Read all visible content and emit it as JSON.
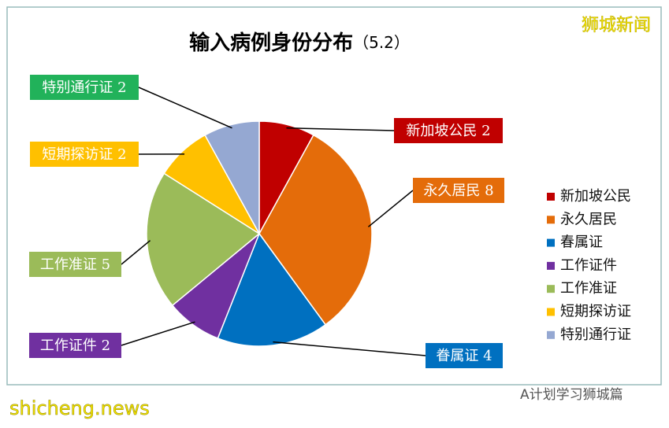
{
  "chart_data": {
    "type": "pie",
    "title": "输入病例身份分布",
    "title_note": "（5.2）",
    "categories": [
      "新加坡公民",
      "永久居民",
      "眷属证",
      "工作证件",
      "工作准证",
      "短期探访证",
      "特别通行证"
    ],
    "legend_labels": [
      "新加坡公民",
      "永久居民",
      "春属证",
      "工作证件",
      "工作准证",
      "短期探访证",
      "特别通行证"
    ],
    "values": [
      2,
      8,
      4,
      2,
      5,
      2,
      2
    ],
    "colors": [
      "#c00000",
      "#e46c0a",
      "#0070c0",
      "#7030a0",
      "#9bbb59",
      "#ffc000",
      "#95a8d2"
    ],
    "label_colors": [
      "#c00000",
      "#e46c0a",
      "#0070c0",
      "#7030a0",
      "#9bbb59",
      "#ffc000",
      "#21b25a"
    ],
    "legend_position": "right"
  },
  "watermarks": {
    "top_right": "狮城新闻",
    "bottom_left": "shicheng.news",
    "bottom_right": "A计划学习狮城篇"
  }
}
